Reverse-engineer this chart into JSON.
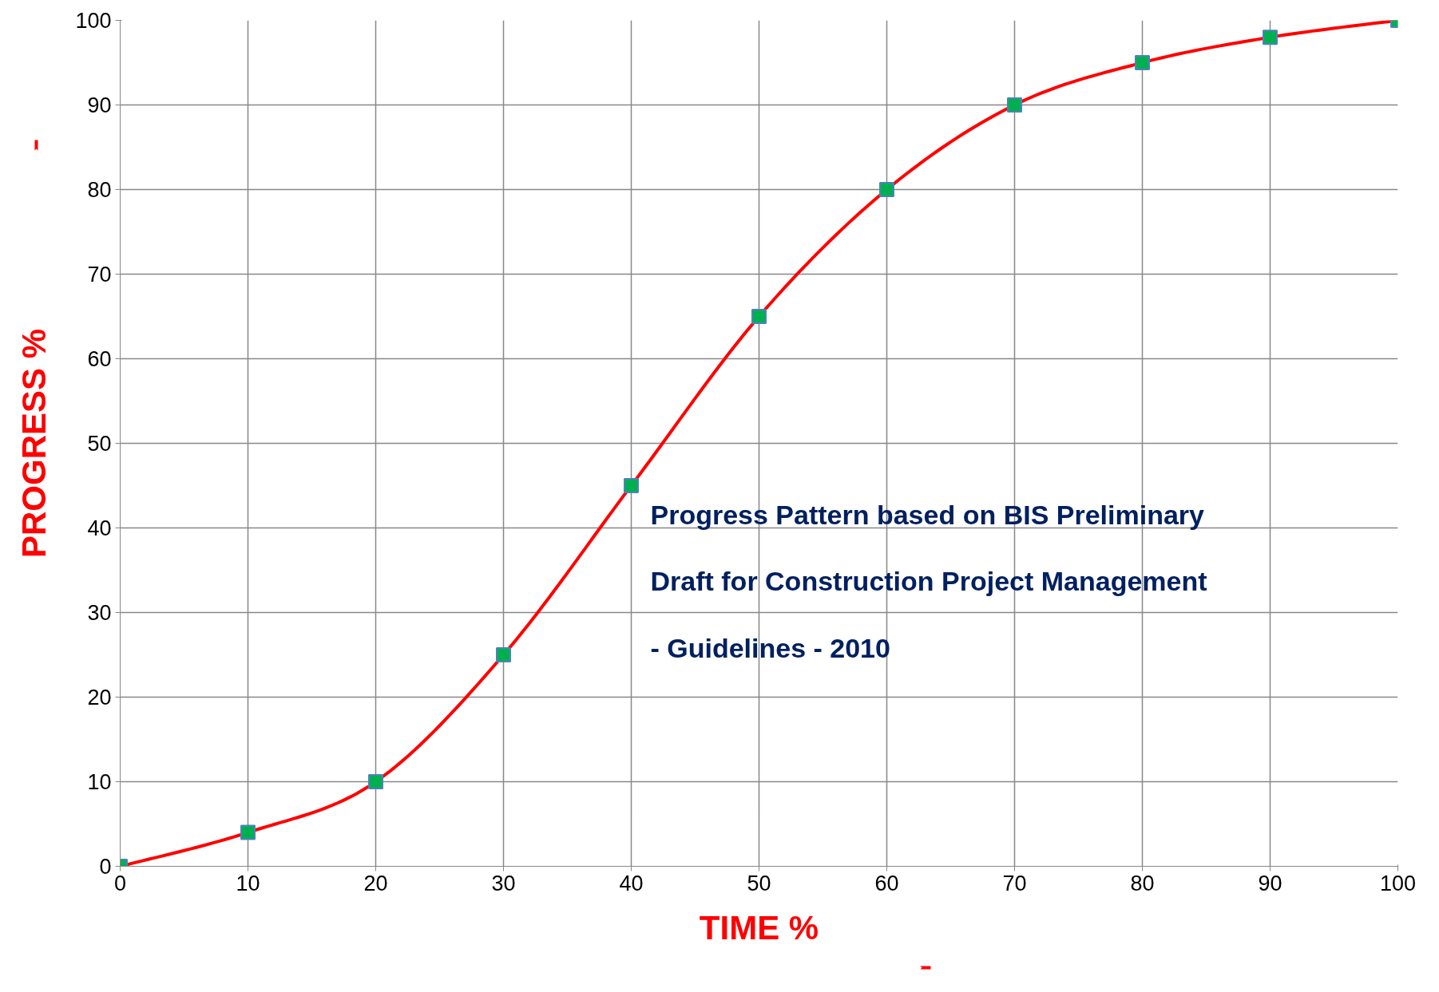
{
  "chart_data": {
    "type": "line",
    "xlabel": "TIME %",
    "ylabel": "PROGRESS %",
    "x": [
      0,
      10,
      20,
      30,
      40,
      50,
      60,
      70,
      80,
      90,
      100
    ],
    "series": [
      {
        "color": "#ff0000",
        "values": [
          0,
          4,
          10,
          25,
          45,
          65,
          80,
          90,
          95,
          98,
          100
        ]
      }
    ],
    "xlim": [
      0,
      100
    ],
    "ylim": [
      0,
      100
    ],
    "xticks": [
      0,
      10,
      20,
      30,
      40,
      50,
      60,
      70,
      80,
      90,
      100
    ],
    "yticks": [
      0,
      10,
      20,
      30,
      40,
      50,
      60,
      70,
      80,
      90,
      100
    ],
    "grid": true,
    "marker": "square",
    "line_style": "solid",
    "annotations": [
      "Progress Pattern  based on  BIS Preliminary\nDraft  for Construction Project Management\n-  Guidelines - 2010"
    ]
  }
}
